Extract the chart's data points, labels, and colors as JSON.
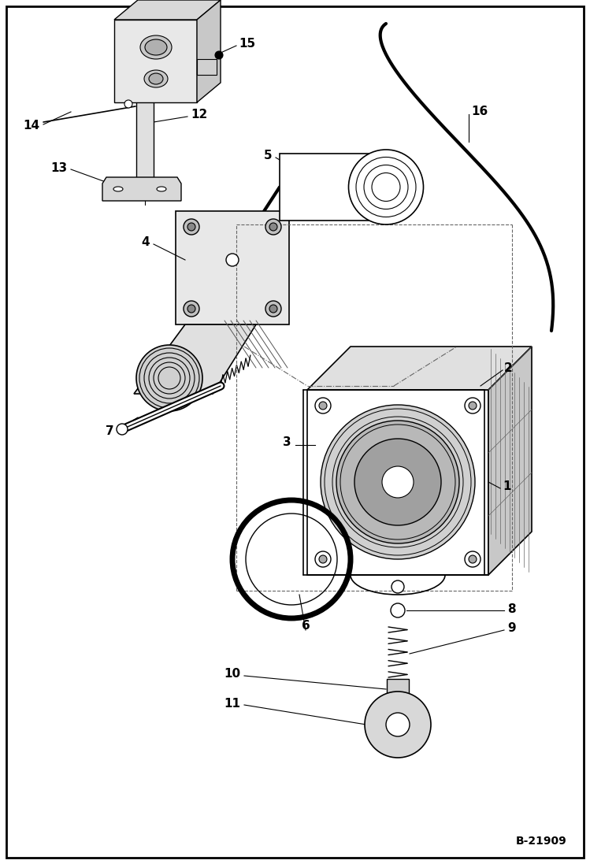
{
  "bg_color": "#ffffff",
  "border_color": "#000000",
  "line_color": "#000000",
  "watermark": "B-21909"
}
